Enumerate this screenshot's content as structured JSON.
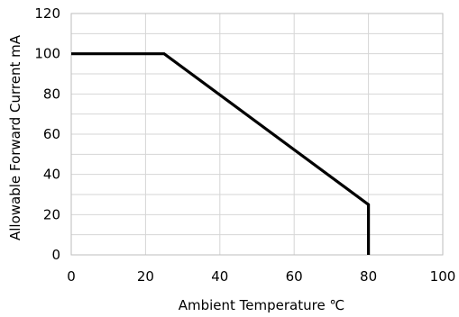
{
  "chart_data": {
    "type": "line",
    "title": "",
    "xlabel": "Ambient Temperature ℃",
    "ylabel": "Allowable Forward Current  mA",
    "xlim": [
      0,
      100
    ],
    "ylim": [
      0,
      120
    ],
    "xticks": [
      0,
      20,
      40,
      60,
      80,
      100
    ],
    "yticks": [
      0,
      20,
      40,
      60,
      80,
      100,
      120
    ],
    "grid": true,
    "series": [
      {
        "x": [
          0,
          25,
          80,
          80
        ],
        "y": [
          100,
          100,
          25,
          0
        ]
      }
    ],
    "line_color": "#000000"
  }
}
